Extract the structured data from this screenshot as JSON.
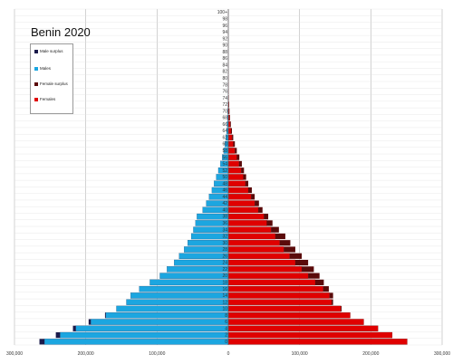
{
  "chart_data": {
    "type": "bar",
    "orientation": "horizontal-population-pyramid",
    "title": "Benin 2020",
    "legend": [
      {
        "name": "Male surplus",
        "color": "#1a1a4a"
      },
      {
        "name": "Males",
        "color": "#1ca6e0"
      },
      {
        "name": "Female surplus",
        "color": "#5a0a0a"
      },
      {
        "name": "Females",
        "color": "#e00000"
      }
    ],
    "legend_position": "top-left",
    "age_tick_labels": [
      "100+",
      "98",
      "96",
      "94",
      "92",
      "90",
      "88",
      "86",
      "84",
      "82",
      "80",
      "78",
      "76",
      "74",
      "72",
      "70",
      "68",
      "66",
      "64",
      "62",
      "60",
      "58",
      "56",
      "54",
      "52",
      "50",
      "48",
      "46",
      "44",
      "42",
      "40",
      "38",
      "36",
      "34",
      "32",
      "30",
      "28",
      "26",
      "24",
      "22",
      "20",
      "18",
      "16",
      "14",
      "12",
      "10",
      "8",
      "6",
      "4",
      "2",
      "0"
    ],
    "x_tick_labels": [
      "300,000",
      "200,000",
      "100,000",
      "0",
      "100,000",
      "200,000",
      "300,000"
    ],
    "x_tick_values": [
      -300000,
      -200000,
      -100000,
      0,
      100000,
      200000,
      300000
    ],
    "xlim": [
      -300000,
      300000
    ],
    "ages": [
      0,
      2,
      4,
      6,
      8,
      10,
      12,
      14,
      16,
      18,
      20,
      22,
      24,
      26,
      28,
      30,
      32,
      34,
      36,
      38,
      40,
      42,
      44,
      46,
      48,
      50,
      52,
      54,
      56,
      58,
      60,
      62,
      64,
      66,
      68,
      70,
      72,
      74,
      76,
      78,
      80,
      82,
      84,
      86,
      88,
      90,
      92,
      94,
      96,
      98,
      100
    ],
    "series": [
      {
        "name": "Males",
        "values": [
          258000,
          236000,
          214000,
          193000,
          172000,
          157000,
          143000,
          137000,
          125000,
          110000,
          96000,
          86000,
          76000,
          69000,
          62000,
          57000,
          52000,
          49000,
          46000,
          44000,
          36000,
          31000,
          27000,
          23000,
          20000,
          17000,
          14000,
          11000,
          8500,
          6500,
          4800,
          3500,
          2500,
          1800,
          1200,
          800,
          500,
          300,
          180,
          110,
          70,
          40,
          25,
          15,
          9,
          5,
          3,
          2,
          1,
          1,
          1
        ]
      },
      {
        "name": "Females",
        "values": [
          251000,
          230000,
          210000,
          190000,
          171000,
          158000,
          145000,
          142000,
          133000,
          122000,
          112000,
          103000,
          94000,
          86000,
          78000,
          72000,
          66000,
          60000,
          54000,
          50000,
          42000,
          37000,
          32000,
          28000,
          24000,
          21000,
          18000,
          15000,
          12000,
          9200,
          7000,
          5200,
          3800,
          2700,
          1800,
          1200,
          800,
          500,
          300,
          180,
          110,
          60,
          35,
          20,
          12,
          7,
          4,
          2,
          1,
          1,
          1
        ]
      },
      {
        "name": "Male surplus",
        "values": [
          7000,
          6000,
          4000,
          3000,
          1000,
          0,
          0,
          0,
          0,
          0,
          0,
          0,
          0,
          0,
          0,
          0,
          0,
          0,
          0,
          0,
          0,
          0,
          0,
          0,
          0,
          0,
          0,
          0,
          0,
          0,
          0,
          0,
          0,
          0,
          0,
          0,
          0,
          0,
          0,
          0,
          0,
          0,
          0,
          0,
          0,
          0,
          0,
          0,
          0,
          0,
          0
        ]
      },
      {
        "name": "Female surplus",
        "values": [
          0,
          0,
          0,
          0,
          0,
          1000,
          2000,
          5000,
          8000,
          12000,
          16000,
          17000,
          18000,
          17000,
          16000,
          15000,
          14000,
          11000,
          8000,
          6000,
          6000,
          6000,
          5000,
          5000,
          4000,
          4000,
          4000,
          4000,
          3500,
          2700,
          2200,
          1700,
          1300,
          900,
          600,
          400,
          300,
          200,
          120,
          70,
          40,
          20,
          10,
          5,
          3,
          2,
          1,
          0,
          0,
          0,
          0
        ]
      }
    ],
    "grid": true
  }
}
